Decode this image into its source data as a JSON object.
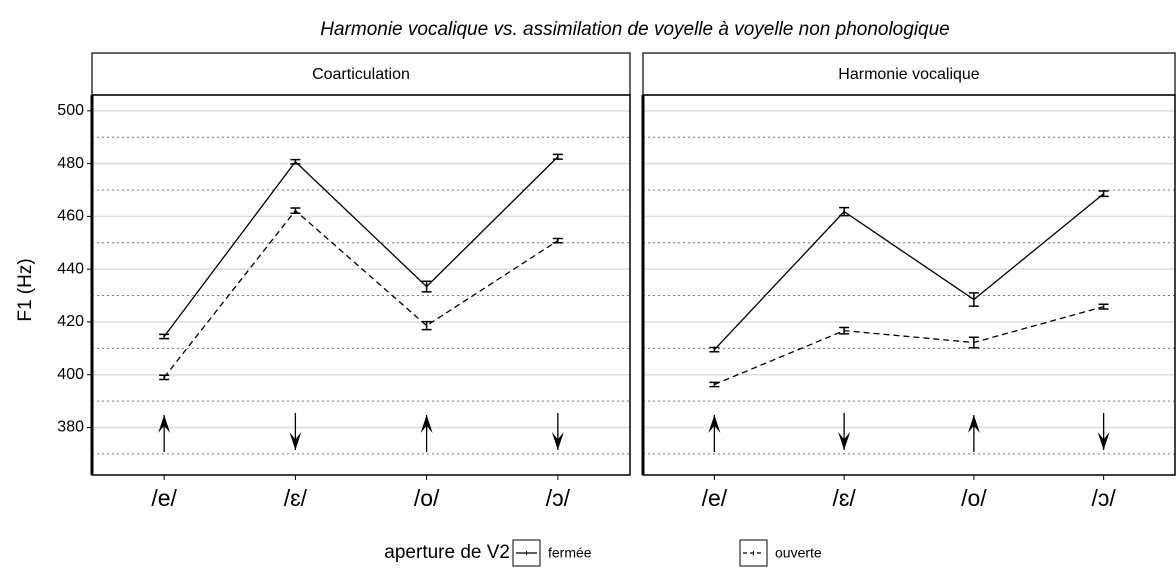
{
  "title": "Harmonie vocalique vs. assimilation de voyelle à voyelle non phonologique",
  "y_axis_label": "F1 (Hz)",
  "legend_title": "aperture de V2",
  "chart_data": [
    {
      "type": "line",
      "panel_title": "Coarticulation",
      "categories": [
        "/e/",
        "/ɛ/",
        "/o/",
        "/ɔ/"
      ],
      "arrows": [
        "up",
        "down",
        "up",
        "down"
      ],
      "series": [
        {
          "name": "fermée",
          "color": "#000000",
          "line_style": "solid",
          "values": [
            414.5,
            480.7,
            433.4,
            482.6
          ],
          "errors": [
            0.8,
            0.8,
            2,
            0.9
          ]
        },
        {
          "name": "ouverte",
          "color": "#000000",
          "line_style": "dashed",
          "values": [
            399,
            462.2,
            418.6,
            450.8
          ],
          "errors": [
            0.8,
            1,
            1.5,
            0.8
          ]
        }
      ],
      "ylim": [
        362,
        506
      ],
      "yticks": [
        380,
        400,
        420,
        440,
        460,
        480,
        500
      ],
      "yminorticks": [
        370,
        390,
        410,
        430,
        450,
        470,
        490
      ],
      "grid": true
    },
    {
      "type": "line",
      "panel_title": "Harmonie  vocalique",
      "categories": [
        "/e/",
        "/ɛ/",
        "/o/",
        "/ɔ/"
      ],
      "arrows": [
        "up",
        "down",
        "up",
        "down"
      ],
      "series": [
        {
          "name": "fermée",
          "color": "#000000",
          "line_style": "solid",
          "values": [
            409.5,
            461.8,
            428.5,
            468.6
          ],
          "errors": [
            0.8,
            1.5,
            2.5,
            1
          ]
        },
        {
          "name": "ouverte",
          "color": "#000000",
          "line_style": "dashed",
          "values": [
            396.3,
            416.7,
            412.2,
            425.8
          ],
          "errors": [
            0.8,
            1.2,
            2,
            0.9
          ]
        }
      ],
      "ylim": [
        362,
        506
      ],
      "yticks": [
        380,
        400,
        420,
        440,
        460,
        480,
        500
      ],
      "yminorticks": [
        370,
        390,
        410,
        430,
        450,
        470,
        490
      ],
      "grid": true
    }
  ]
}
